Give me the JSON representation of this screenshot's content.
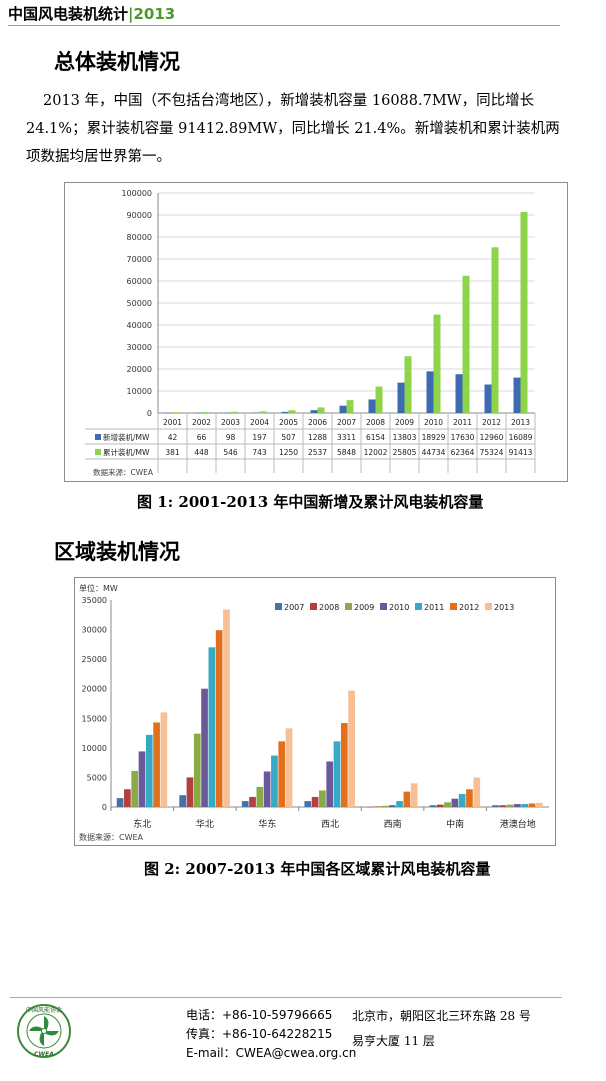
{
  "header": {
    "title": "中国风电装机统计",
    "separator": "|",
    "year": "2013"
  },
  "section1": {
    "heading": "总体装机情况",
    "paragraph_lines": [
      "2013 年，中国（不包括台湾地区），新增装机容量 16088.7MW，同比增长",
      "24.1%；累计装机容量 91412.89MW，同比增长 21.4%。新增装机和累计装机两",
      "项数据均居世界第一。"
    ]
  },
  "figure1": {
    "caption": "图 1: 2001-2013 年中国新增及累计风电装机容量",
    "source": "数据来源：CWEA"
  },
  "section2": {
    "heading": "区域装机情况"
  },
  "figure2": {
    "caption": "图 2: 2007-2013 年中国各区域累计风电装机容量",
    "source": "数据来源：CWEA",
    "unit_label": "单位：MW"
  },
  "chart_data": [
    {
      "type": "bar",
      "categories": [
        "2001",
        "2002",
        "2003",
        "2004",
        "2005",
        "2006",
        "2007",
        "2008",
        "2009",
        "2010",
        "2011",
        "2012",
        "2013"
      ],
      "series": [
        {
          "name": "新增装机/MW",
          "color": "#3d6ab0",
          "values": [
            42,
            66,
            98,
            197,
            507,
            1288,
            3311,
            6154,
            13803,
            18929,
            17630,
            12960,
            16089
          ]
        },
        {
          "name": "累计装机/MW",
          "color": "#8dd44a",
          "values": [
            381,
            448,
            546,
            743,
            1250,
            2537,
            5848,
            12002,
            25805,
            44734,
            62364,
            75324,
            91413
          ]
        }
      ],
      "ylim": [
        0,
        100000
      ],
      "yticks": [
        0,
        10000,
        20000,
        30000,
        40000,
        50000,
        60000,
        70000,
        80000,
        90000,
        100000
      ],
      "grid": true,
      "legend": "data-table"
    },
    {
      "type": "bar",
      "categories": [
        "东北",
        "华北",
        "华东",
        "西北",
        "西南",
        "中南",
        "港澳台地"
      ],
      "series": [
        {
          "name": "2007",
          "color": "#4472a8",
          "values": [
            1500,
            2000,
            1000,
            1000,
            0,
            300,
            300
          ]
        },
        {
          "name": "2008",
          "color": "#b34040",
          "values": [
            3000,
            5000,
            1700,
            1700,
            100,
            400,
            300
          ]
        },
        {
          "name": "2009",
          "color": "#8aaa48",
          "values": [
            6100,
            12400,
            3400,
            2800,
            200,
            800,
            400
          ]
        },
        {
          "name": "2010",
          "color": "#6b5a9a",
          "values": [
            9400,
            20000,
            6000,
            7700,
            300,
            1400,
            500
          ]
        },
        {
          "name": "2011",
          "color": "#35a9c6",
          "values": [
            12200,
            27000,
            8700,
            11100,
            1000,
            2200,
            500
          ]
        },
        {
          "name": "2012",
          "color": "#e0701e",
          "values": [
            14300,
            29900,
            11100,
            14200,
            2600,
            3000,
            600
          ]
        },
        {
          "name": "2013",
          "color": "#f8bf94",
          "values": [
            16000,
            33400,
            13300,
            19700,
            4000,
            5000,
            700
          ]
        }
      ],
      "ylim": [
        0,
        35000
      ],
      "yticks": [
        0,
        5000,
        10000,
        15000,
        20000,
        25000,
        30000,
        35000
      ],
      "grid": false,
      "legend": "top-right"
    }
  ],
  "footer": {
    "logo_text": "中国风能协会",
    "logo_abbr": "CWEA",
    "phone": "电话：+86-10-59796665",
    "fax": "传真：+86-10-64228215",
    "email": "E-mail：CWEA@cwea.org.cn",
    "address_line1": "北京市，朝阳区北三环东路 28 号",
    "address_line2": "易亨大厦 11 层"
  }
}
